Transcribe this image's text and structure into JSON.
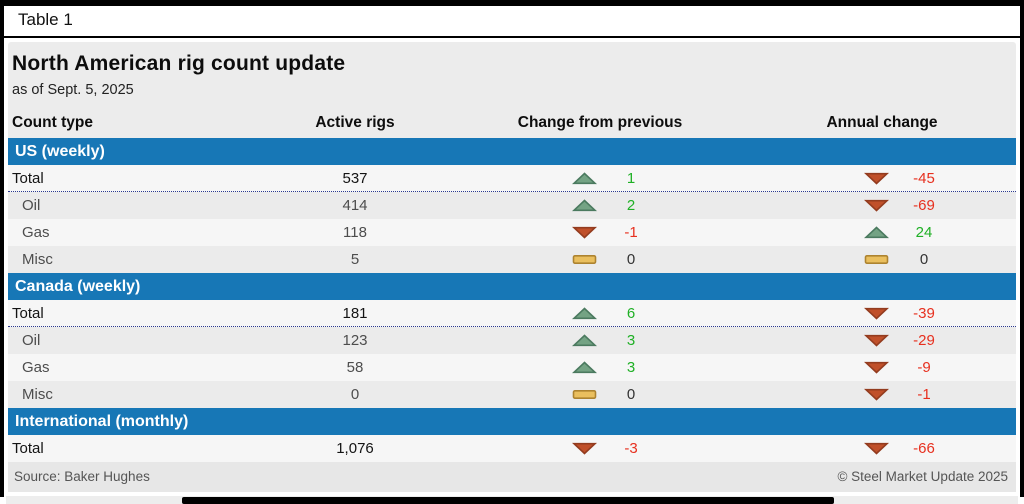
{
  "frame": {
    "table_label": "Table 1"
  },
  "header": {
    "title": "North American rig count update",
    "subtitle": "as of Sept. 5, 2025"
  },
  "columns": [
    "Count type",
    "Active rigs",
    "Change from previous",
    "Annual change"
  ],
  "colors": {
    "section_bar_blue": "#1777b6",
    "up_fill": "#74a384",
    "up_stroke": "#4b7a5f",
    "down_fill": "#c0502a",
    "down_stroke": "#933c1f",
    "flat_fill": "#eabf5e",
    "flat_stroke": "#ad8330",
    "positive_text": "#1fb025",
    "negative_text": "#e7301f",
    "zero_text": "#333333",
    "dotted_rule": "#2b3990"
  },
  "sections": [
    {
      "label": "US (weekly)",
      "rows": [
        {
          "name": "Total",
          "total": true,
          "active": "537",
          "prev": {
            "dir": "up",
            "value": "1"
          },
          "annual": {
            "dir": "down",
            "value": "-45"
          }
        },
        {
          "name": "Oil",
          "total": false,
          "active": "414",
          "prev": {
            "dir": "up",
            "value": "2"
          },
          "annual": {
            "dir": "down",
            "value": "-69"
          }
        },
        {
          "name": "Gas",
          "total": false,
          "active": "118",
          "prev": {
            "dir": "down",
            "value": "-1"
          },
          "annual": {
            "dir": "up",
            "value": "24"
          }
        },
        {
          "name": "Misc",
          "total": false,
          "active": "5",
          "prev": {
            "dir": "flat",
            "value": "0"
          },
          "annual": {
            "dir": "flat",
            "value": "0"
          }
        }
      ]
    },
    {
      "label": "Canada (weekly)",
      "rows": [
        {
          "name": "Total",
          "total": true,
          "active": "181",
          "prev": {
            "dir": "up",
            "value": "6"
          },
          "annual": {
            "dir": "down",
            "value": "-39"
          }
        },
        {
          "name": "Oil",
          "total": false,
          "active": "123",
          "prev": {
            "dir": "up",
            "value": "3"
          },
          "annual": {
            "dir": "down",
            "value": "-29"
          }
        },
        {
          "name": "Gas",
          "total": false,
          "active": "58",
          "prev": {
            "dir": "up",
            "value": "3"
          },
          "annual": {
            "dir": "down",
            "value": "-9"
          }
        },
        {
          "name": "Misc",
          "total": false,
          "active": "0",
          "prev": {
            "dir": "flat",
            "value": "0"
          },
          "annual": {
            "dir": "down",
            "value": "-1"
          }
        }
      ]
    },
    {
      "label": "International (monthly)",
      "rows": [
        {
          "name": "Total",
          "total": true,
          "active": "1,076",
          "prev": {
            "dir": "down",
            "value": "-3"
          },
          "annual": {
            "dir": "down",
            "value": "-66"
          }
        }
      ]
    }
  ],
  "footer": {
    "source": "Source: Baker Hughes",
    "copyright": "© Steel Market Update 2025"
  },
  "chart_data": {
    "type": "table",
    "title": "North American rig count update",
    "subtitle": "as of Sept. 5, 2025",
    "columns": [
      "Count type",
      "Active rigs",
      "Change from previous",
      "Annual change"
    ],
    "rows": [
      [
        "US (weekly) — Total",
        537,
        1,
        -45
      ],
      [
        "US (weekly) — Oil",
        414,
        2,
        -69
      ],
      [
        "US (weekly) — Gas",
        118,
        -1,
        24
      ],
      [
        "US (weekly) — Misc",
        5,
        0,
        0
      ],
      [
        "Canada (weekly) — Total",
        181,
        6,
        -39
      ],
      [
        "Canada (weekly) — Oil",
        123,
        3,
        -29
      ],
      [
        "Canada (weekly) — Gas",
        58,
        3,
        -9
      ],
      [
        "Canada (weekly) — Misc",
        0,
        0,
        -1
      ],
      [
        "International (monthly) — Total",
        1076,
        -3,
        -66
      ]
    ],
    "source": "Baker Hughes"
  }
}
